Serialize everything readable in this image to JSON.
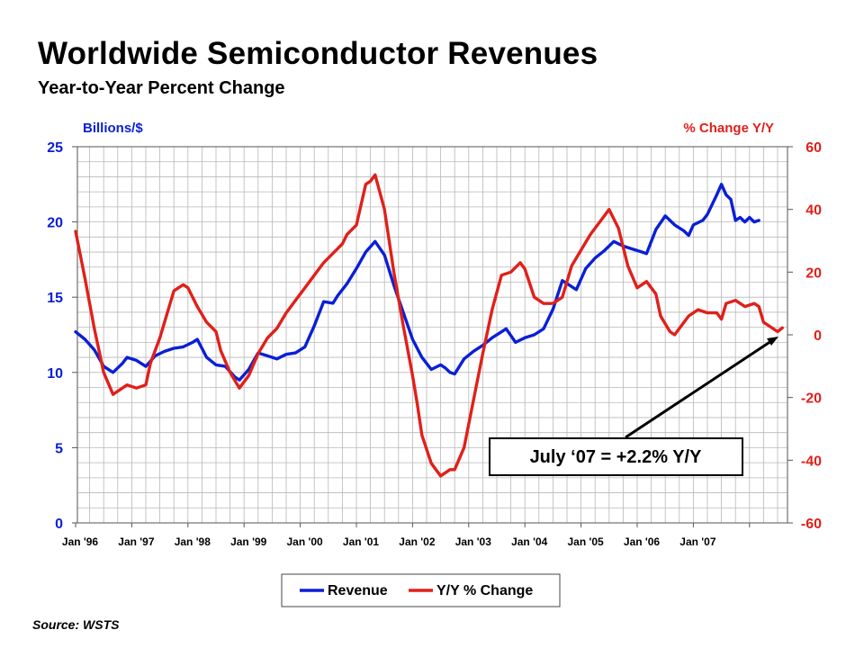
{
  "title": "Worldwide Semiconductor Revenues",
  "subtitle": "Year-to-Year Percent Change",
  "source": "Source: WSTS",
  "colors": {
    "revenue": "#0a1fd6",
    "change": "#e0201a",
    "grid": "#b8b8b8"
  },
  "chart_data": {
    "type": "line",
    "left_axis": {
      "label": "Billions/$",
      "range": [
        0,
        25
      ],
      "ticks": [
        "0",
        "5",
        "10",
        "15",
        "20",
        "25"
      ]
    },
    "right_axis": {
      "label": "%  Change  Y/Y",
      "range": [
        -60,
        60
      ],
      "ticks": [
        "-60",
        "-40",
        "-20",
        "0",
        "20",
        "40",
        "60"
      ]
    },
    "x_labels": [
      "Jan '96",
      "Jan '97",
      "Jan '98",
      "Jan '99",
      "Jan '00",
      "Jan '01",
      "Jan '02",
      "Jan '03",
      "Jan '04",
      "Jan '05",
      "Jan '06",
      "Jan '07"
    ],
    "legend": [
      "Revenue",
      "Y/Y % Change"
    ],
    "annotation": "July ‘07 = +2.2% Y/Y",
    "series": [
      {
        "name": "Revenue",
        "axis": "left",
        "points": [
          [
            0,
            12.7
          ],
          [
            2,
            12.2
          ],
          [
            4,
            11.5
          ],
          [
            6,
            10.4
          ],
          [
            8,
            10.0
          ],
          [
            10,
            10.6
          ],
          [
            11,
            11.0
          ],
          [
            13,
            10.8
          ],
          [
            15,
            10.4
          ],
          [
            17,
            11.1
          ],
          [
            19,
            11.4
          ],
          [
            21,
            11.6
          ],
          [
            23,
            11.7
          ],
          [
            25,
            12.0
          ],
          [
            26,
            12.2
          ],
          [
            28,
            11.0
          ],
          [
            30,
            10.5
          ],
          [
            32,
            10.4
          ],
          [
            34,
            9.7
          ],
          [
            35,
            9.5
          ],
          [
            37,
            10.2
          ],
          [
            39,
            11.3
          ],
          [
            41,
            11.1
          ],
          [
            43,
            10.9
          ],
          [
            45,
            11.2
          ],
          [
            47,
            11.3
          ],
          [
            49,
            11.7
          ],
          [
            51,
            13.1
          ],
          [
            53,
            14.7
          ],
          [
            55,
            14.6
          ],
          [
            56,
            15.1
          ],
          [
            58,
            15.9
          ],
          [
            60,
            16.9
          ],
          [
            62,
            18.0
          ],
          [
            64,
            18.7
          ],
          [
            66,
            17.8
          ],
          [
            68,
            15.8
          ],
          [
            70,
            14.0
          ],
          [
            72,
            12.2
          ],
          [
            74,
            11.0
          ],
          [
            76,
            10.2
          ],
          [
            78,
            10.5
          ],
          [
            79,
            10.3
          ],
          [
            80,
            10.0
          ],
          [
            81,
            9.9
          ],
          [
            83,
            10.9
          ],
          [
            85,
            11.4
          ],
          [
            87,
            11.8
          ],
          [
            89,
            12.3
          ],
          [
            91,
            12.7
          ],
          [
            92,
            12.9
          ],
          [
            94,
            12.0
          ],
          [
            96,
            12.3
          ],
          [
            98,
            12.5
          ],
          [
            100,
            12.9
          ],
          [
            102,
            14.2
          ],
          [
            104,
            16.1
          ],
          [
            106,
            15.7
          ],
          [
            107,
            15.5
          ],
          [
            109,
            16.9
          ],
          [
            111,
            17.6
          ],
          [
            113,
            18.1
          ],
          [
            115,
            18.7
          ],
          [
            117,
            18.4
          ],
          [
            119,
            18.2
          ],
          [
            121,
            18.0
          ],
          [
            122,
            17.9
          ],
          [
            124,
            19.5
          ],
          [
            126,
            20.4
          ],
          [
            128,
            19.8
          ],
          [
            130,
            19.4
          ],
          [
            131,
            19.1
          ],
          [
            132,
            19.8
          ],
          [
            134,
            20.1
          ],
          [
            135,
            20.5
          ],
          [
            137,
            21.8
          ],
          [
            138,
            22.5
          ],
          [
            139,
            21.8
          ],
          [
            140,
            21.5
          ],
          [
            141,
            20.1
          ],
          [
            142,
            20.3
          ],
          [
            143,
            20.0
          ],
          [
            144,
            20.3
          ],
          [
            145,
            20.0
          ],
          [
            146,
            20.1
          ]
        ]
      },
      {
        "name": "Y/Y % Change",
        "axis": "right",
        "points": [
          [
            0,
            33
          ],
          [
            2,
            18
          ],
          [
            4,
            2
          ],
          [
            6,
            -12
          ],
          [
            8,
            -19
          ],
          [
            10,
            -17
          ],
          [
            11,
            -16
          ],
          [
            13,
            -17
          ],
          [
            15,
            -16
          ],
          [
            16,
            -9
          ],
          [
            18,
            -1
          ],
          [
            21,
            14
          ],
          [
            23,
            16
          ],
          [
            24,
            15
          ],
          [
            26,
            9
          ],
          [
            28,
            4
          ],
          [
            30,
            1
          ],
          [
            31,
            -5
          ],
          [
            33,
            -12
          ],
          [
            35,
            -17
          ],
          [
            37,
            -13
          ],
          [
            39,
            -6
          ],
          [
            41,
            -1
          ],
          [
            43,
            2
          ],
          [
            45,
            7
          ],
          [
            47,
            11
          ],
          [
            49,
            15
          ],
          [
            51,
            19
          ],
          [
            53,
            23
          ],
          [
            55,
            26
          ],
          [
            57,
            29
          ],
          [
            58,
            32
          ],
          [
            60,
            35
          ],
          [
            62,
            48
          ],
          [
            63,
            49
          ],
          [
            64,
            51
          ],
          [
            66,
            40
          ],
          [
            68,
            20
          ],
          [
            70,
            3
          ],
          [
            71,
            -5
          ],
          [
            72,
            -13
          ],
          [
            73,
            -22
          ],
          [
            74,
            -32
          ],
          [
            76,
            -41
          ],
          [
            78,
            -45
          ],
          [
            80,
            -43
          ],
          [
            81,
            -43
          ],
          [
            83,
            -36
          ],
          [
            85,
            -21
          ],
          [
            87,
            -6
          ],
          [
            89,
            8
          ],
          [
            91,
            19
          ],
          [
            93,
            20
          ],
          [
            95,
            23
          ],
          [
            96,
            21
          ],
          [
            98,
            12
          ],
          [
            100,
            10
          ],
          [
            102,
            10
          ],
          [
            104,
            12
          ],
          [
            106,
            22
          ],
          [
            108,
            27
          ],
          [
            110,
            32
          ],
          [
            112,
            36
          ],
          [
            114,
            40
          ],
          [
            116,
            34
          ],
          [
            118,
            22
          ],
          [
            120,
            15
          ],
          [
            122,
            17
          ],
          [
            124,
            13
          ],
          [
            125,
            6
          ],
          [
            127,
            1
          ],
          [
            128,
            0
          ],
          [
            129,
            2
          ],
          [
            131,
            6
          ],
          [
            133,
            8
          ],
          [
            135,
            7
          ],
          [
            137,
            7
          ],
          [
            138,
            5
          ],
          [
            139,
            10
          ],
          [
            141,
            11
          ],
          [
            143,
            9
          ],
          [
            145,
            10
          ],
          [
            146,
            9
          ],
          [
            147,
            4
          ],
          [
            149,
            2
          ],
          [
            150,
            1
          ],
          [
            151,
            2.2
          ]
        ]
      }
    ]
  }
}
